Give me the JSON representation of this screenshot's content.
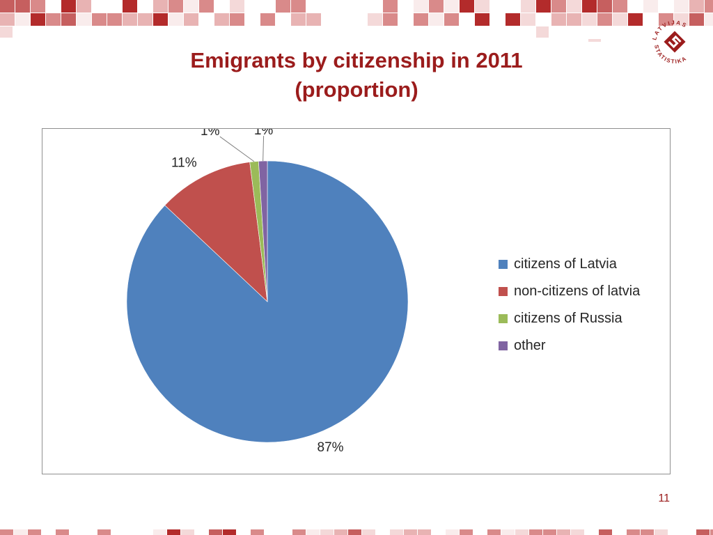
{
  "slide": {
    "title_line1": "Emigrants by citizenship in 2011",
    "title_line2": "(proportion)",
    "page_number": "11",
    "logo_text": "LATVIJAS STATISTIKA"
  },
  "colors": {
    "title": "#9b1c1c",
    "citizens_of_latvia": "#4f81bd",
    "non_citizens_of_latvia": "#c0504d",
    "citizens_of_russia": "#9bbb59",
    "other": "#8064a2"
  },
  "chart_data": {
    "type": "pie",
    "title": "",
    "categories": [
      "citizens of Latvia",
      "non-citizens of latvia",
      "citizens of Russia",
      "other"
    ],
    "values": [
      87,
      11,
      1,
      1
    ],
    "data_labels": [
      "87%",
      "11%",
      "1%",
      "1%"
    ],
    "unit": "%",
    "legend_position": "right",
    "start_angle": "12 o'clock, clockwise"
  }
}
